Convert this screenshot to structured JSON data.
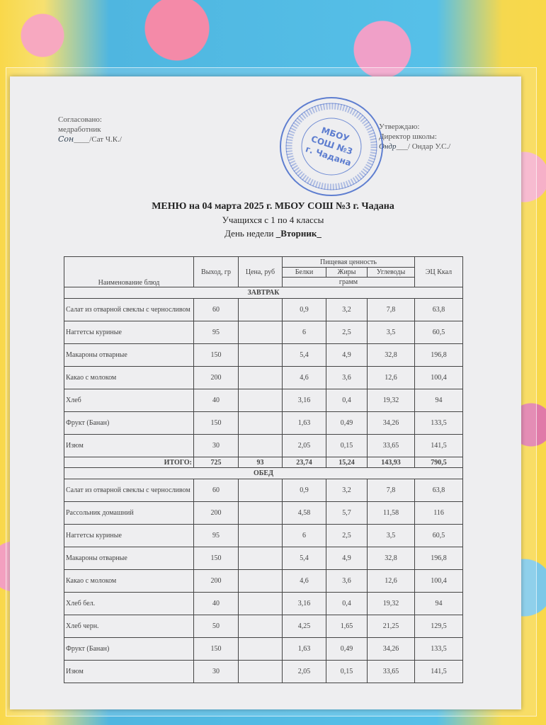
{
  "approval_left": {
    "line1": "Согласовано:",
    "line2": "медработник",
    "line3": "/Сат Ч.К./"
  },
  "approval_right": {
    "line1": "Утверждаю:",
    "line2": "Директор школы:",
    "line3": "/ Ондар У.С./"
  },
  "stamp": {
    "center": [
      "МБОУ",
      "СОШ №3",
      "г. Чадана"
    ],
    "color": "#3a62c8"
  },
  "title": "МЕНЮ на 04 марта 2025 г. МБОУ СОШ №3 г. Чадана",
  "subtitle": "Учащихся с 1 по 4 классы",
  "weekday_label": "День недели ",
  "weekday": "_Вторник_",
  "table": {
    "headers": {
      "name": "Наименование блюд",
      "output": "Выход, гр",
      "price": "Цена, руб",
      "nutrition": "Пищевая ценность",
      "protein": "Белки",
      "fat": "Жиры",
      "carbs": "Углеводы",
      "unit": "грамм",
      "kcal": "ЭЦ Ккал"
    },
    "sections": [
      {
        "title": "ЗАВТРАК",
        "rows": [
          [
            "Салат из отварной свеклы с черносливом",
            "60",
            "",
            "0,9",
            "3,2",
            "7,8",
            "63,8"
          ],
          [
            "Наггетсы куриные",
            "95",
            "",
            "6",
            "2,5",
            "3,5",
            "60,5"
          ],
          [
            "Макароны отварные",
            "150",
            "",
            "5,4",
            "4,9",
            "32,8",
            "196,8"
          ],
          [
            "Какао с молоком",
            "200",
            "",
            "4,6",
            "3,6",
            "12,6",
            "100,4"
          ],
          [
            "Хлеб",
            "40",
            "",
            "3,16",
            "0,4",
            "19,32",
            "94"
          ],
          [
            "Фрукт (Банан)",
            "150",
            "",
            "1,63",
            "0,49",
            "34,26",
            "133,5"
          ],
          [
            "Изюм",
            "30",
            "",
            "2,05",
            "0,15",
            "33,65",
            "141,5"
          ]
        ],
        "total": [
          "ИТОГО:",
          "725",
          "93",
          "23,74",
          "15,24",
          "143,93",
          "790,5"
        ]
      },
      {
        "title": "ОБЕД",
        "rows": [
          [
            "Салат из отварной свеклы с черносливом",
            "60",
            "",
            "0,9",
            "3,2",
            "7,8",
            "63,8"
          ],
          [
            "Рассольник домашний",
            "200",
            "",
            "4,58",
            "5,7",
            "11,58",
            "116"
          ],
          [
            "Наггетсы куриные",
            "95",
            "",
            "6",
            "2,5",
            "3,5",
            "60,5"
          ],
          [
            "Макароны отварные",
            "150",
            "",
            "5,4",
            "4,9",
            "32,8",
            "196,8"
          ],
          [
            "Какао с молоком",
            "200",
            "",
            "4,6",
            "3,6",
            "12,6",
            "100,4"
          ],
          [
            "Хлеб бел.",
            "40",
            "",
            "3,16",
            "0,4",
            "19,32",
            "94"
          ],
          [
            "Хлеб черн.",
            "50",
            "",
            "4,25",
            "1,65",
            "21,25",
            "129,5"
          ],
          [
            "Фрукт (Банан)",
            "150",
            "",
            "1,63",
            "0,49",
            "34,26",
            "133,5"
          ],
          [
            "Изюм",
            "30",
            "",
            "2,05",
            "0,15",
            "33,65",
            "141,5"
          ]
        ]
      }
    ]
  }
}
